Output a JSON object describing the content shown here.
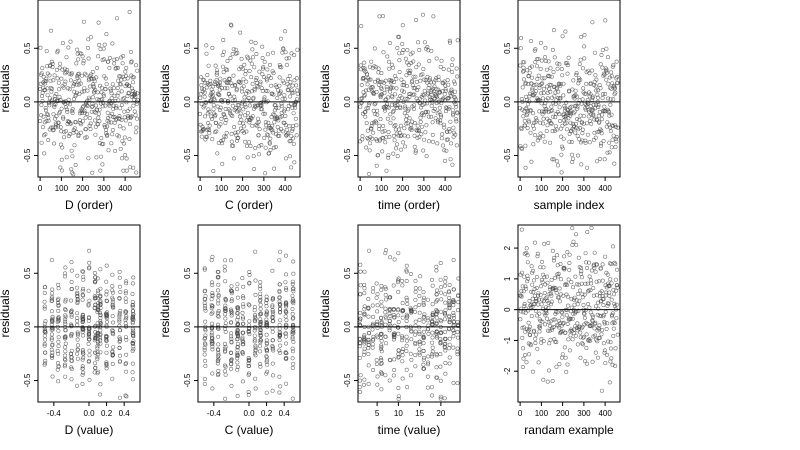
{
  "chart_data": [
    {
      "type": "scatter",
      "title": "",
      "xlabel": "D (order)",
      "ylabel": "residuals",
      "xlim": [
        -10,
        470
      ],
      "ylim": [
        -0.7,
        0.95
      ],
      "xticks": [
        0,
        100,
        200,
        300,
        400
      ],
      "xtick_labels": [
        "0",
        "100",
        "200",
        "300",
        "400"
      ],
      "yticks": [
        -0.5,
        0.0,
        0.5
      ],
      "ytick_labels": [
        "-0.5",
        "0.0",
        "0.5"
      ],
      "hline": 0,
      "x_mode": "index",
      "n": 460,
      "x_values": [],
      "sd": 0.27
    },
    {
      "type": "scatter",
      "title": "",
      "xlabel": "C (order)",
      "ylabel": "residuals",
      "xlim": [
        -10,
        470
      ],
      "ylim": [
        -0.7,
        0.95
      ],
      "xticks": [
        0,
        100,
        200,
        300,
        400
      ],
      "xtick_labels": [
        "0",
        "100",
        "200",
        "300",
        "400"
      ],
      "yticks": [
        -0.5,
        0.0,
        0.5
      ],
      "ytick_labels": [
        "-0.5",
        "0.0",
        "0.5"
      ],
      "hline": 0,
      "x_mode": "index",
      "n": 460,
      "x_values": [],
      "sd": 0.27
    },
    {
      "type": "scatter",
      "title": "",
      "xlabel": "time (order)",
      "ylabel": "residuals",
      "xlim": [
        -10,
        470
      ],
      "ylim": [
        -0.7,
        0.95
      ],
      "xticks": [
        0,
        100,
        200,
        300,
        400
      ],
      "xtick_labels": [
        "0",
        "100",
        "200",
        "300",
        "400"
      ],
      "yticks": [
        -0.5,
        0.0,
        0.5
      ],
      "ytick_labels": [
        "-0.5",
        "0.0",
        "0.5"
      ],
      "hline": 0,
      "x_mode": "index",
      "n": 460,
      "x_values": [],
      "sd": 0.27
    },
    {
      "type": "scatter",
      "title": "",
      "xlabel": "sample index",
      "ylabel": "residuals",
      "xlim": [
        -10,
        470
      ],
      "ylim": [
        -0.7,
        0.95
      ],
      "xticks": [
        0,
        100,
        200,
        300,
        400
      ],
      "xtick_labels": [
        "0",
        "100",
        "200",
        "300",
        "400"
      ],
      "yticks": [
        -0.5,
        0.0,
        0.5
      ],
      "ytick_labels": [
        "-0.5",
        "0.0",
        "0.5"
      ],
      "hline": 0,
      "x_mode": "index",
      "n": 460,
      "x_values": [],
      "sd": 0.27
    },
    {
      "type": "scatter",
      "title": "",
      "xlabel": "D (value)",
      "ylabel": "residuals",
      "xlim": [
        -0.58,
        0.58
      ],
      "ylim": [
        -0.7,
        0.95
      ],
      "xticks": [
        -0.4,
        0.0,
        0.2,
        0.4
      ],
      "xtick_labels": [
        "-0.4",
        "0.0",
        "0.2",
        "0.4"
      ],
      "yticks": [
        -0.5,
        0.0,
        0.5
      ],
      "ytick_labels": [
        "-0.5",
        "0.0",
        "0.5"
      ],
      "hline": 0,
      "x_mode": "discrete",
      "n": 460,
      "x_values": [
        -0.5,
        -0.42,
        -0.35,
        -0.27,
        -0.2,
        -0.13,
        -0.07,
        0.0,
        0.07,
        0.1,
        0.13,
        0.2,
        0.27,
        0.35,
        0.42,
        0.5
      ],
      "sd": 0.27
    },
    {
      "type": "scatter",
      "title": "",
      "xlabel": "C (value)",
      "ylabel": "residuals",
      "xlim": [
        -0.58,
        0.58
      ],
      "ylim": [
        -0.7,
        0.95
      ],
      "xticks": [
        -0.4,
        0.0,
        0.2,
        0.4
      ],
      "xtick_labels": [
        "-0.4",
        "0.0",
        "0.2",
        "0.4"
      ],
      "yticks": [
        -0.5,
        0.0,
        0.5
      ],
      "ytick_labels": [
        "-0.5",
        "0.0",
        "0.5"
      ],
      "hline": 0,
      "x_mode": "discrete",
      "n": 460,
      "x_values": [
        -0.5,
        -0.42,
        -0.35,
        -0.27,
        -0.2,
        -0.13,
        -0.07,
        0.0,
        0.07,
        0.13,
        0.2,
        0.27,
        0.35,
        0.42,
        0.5
      ],
      "sd": 0.27
    },
    {
      "type": "scatter",
      "title": "",
      "xlabel": "time (value)",
      "ylabel": "residuals",
      "xlim": [
        0.5,
        24.5
      ],
      "ylim": [
        -0.7,
        0.95
      ],
      "xticks": [
        5,
        10,
        15,
        20
      ],
      "xtick_labels": [
        "5",
        "10",
        "15",
        "20"
      ],
      "yticks": [
        -0.5,
        0.0,
        0.5
      ],
      "ytick_labels": [
        "-0.5",
        "0.0",
        "0.5"
      ],
      "hline": 0,
      "x_mode": "discrete",
      "n": 460,
      "x_values": [
        1,
        2,
        3,
        4,
        5,
        6,
        7,
        8,
        9,
        10,
        11,
        12,
        13,
        14,
        15,
        16,
        17,
        18,
        19,
        20,
        21,
        22,
        23,
        24
      ],
      "sd": 0.27
    },
    {
      "type": "scatter",
      "title": "",
      "xlabel": "randam example",
      "ylabel": "residuals",
      "xlim": [
        -10,
        470
      ],
      "ylim": [
        -3.0,
        2.75
      ],
      "xticks": [
        0,
        100,
        200,
        300,
        400
      ],
      "xtick_labels": [
        "0",
        "100",
        "200",
        "300",
        "400"
      ],
      "yticks": [
        -2,
        -1,
        0,
        1,
        2
      ],
      "ytick_labels": [
        "-2",
        "-1",
        "0",
        "1",
        "2"
      ],
      "hline": 0,
      "x_mode": "index",
      "n": 460,
      "x_values": [],
      "sd": 1.0
    }
  ]
}
